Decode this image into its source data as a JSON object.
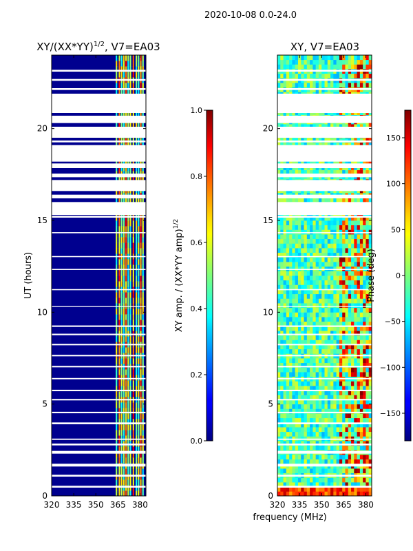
{
  "suptitle": "2020-10-08 0.0-24.0",
  "xlabel_shared": "frequency (MHz)",
  "chart_data": [
    {
      "type": "heatmap",
      "title_main": "XY/(XX*YY)",
      "title_exp": "1/2",
      "title_tail": ", V7=EA03",
      "ylabel": "UT (hours)",
      "xlim": [
        320,
        384
      ],
      "ylim": [
        0,
        24
      ],
      "xticks": [
        320,
        335,
        350,
        365,
        380
      ],
      "yticks": [
        0,
        5,
        10,
        15,
        20
      ],
      "colorbar": {
        "label_main": "XY amp. / (XX*YY amp)",
        "label_exp": "1/2",
        "range": [
          0.0,
          1.0
        ],
        "ticks": [
          "0.0",
          "0.2",
          "0.4",
          "0.6",
          "0.8",
          "1.0"
        ],
        "tick_values": [
          0.0,
          0.2,
          0.4,
          0.6,
          0.8,
          1.0
        ]
      }
    },
    {
      "type": "heatmap",
      "title": "XY, V7=EA03",
      "xlim": [
        320,
        384
      ],
      "ylim": [
        0,
        24
      ],
      "xticks": [
        320,
        335,
        350,
        365,
        380
      ],
      "yticks": [
        0,
        5,
        10,
        15,
        20
      ],
      "colorbar": {
        "label": "Phase (deg)",
        "range": [
          -180,
          180
        ],
        "ticks": [
          "150",
          "100",
          "50",
          "0",
          "−50",
          "−100",
          "−150"
        ],
        "tick_values": [
          150,
          100,
          50,
          0,
          -50,
          -100,
          -150
        ]
      }
    }
  ]
}
